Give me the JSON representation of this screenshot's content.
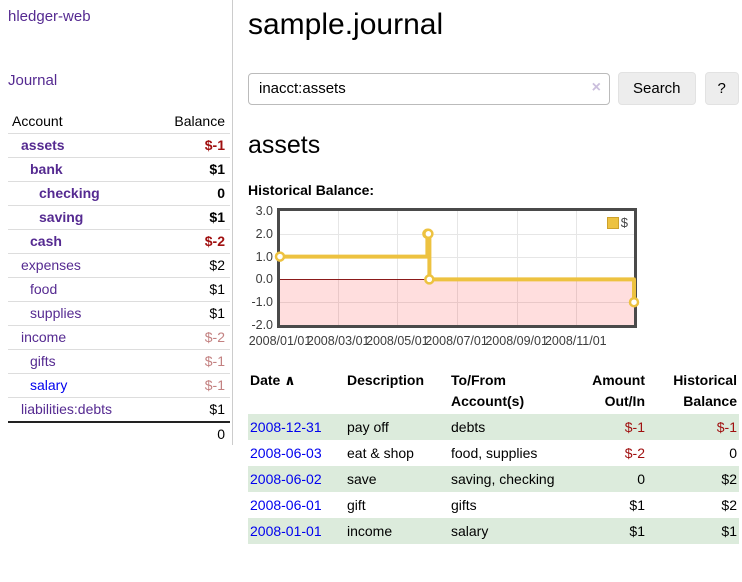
{
  "sidebar": {
    "app_title": "hledger-web",
    "journal_link": "Journal",
    "headers": {
      "account": "Account",
      "balance": "Balance"
    },
    "accounts": [
      {
        "name": "assets",
        "balance": "$-1"
      },
      {
        "name": "bank",
        "balance": "$1"
      },
      {
        "name": "checking",
        "balance": "0"
      },
      {
        "name": "saving",
        "balance": "$1"
      },
      {
        "name": "cash",
        "balance": "$-2"
      },
      {
        "name": "expenses",
        "balance": "$2"
      },
      {
        "name": "food",
        "balance": "$1"
      },
      {
        "name": "supplies",
        "balance": "$1"
      },
      {
        "name": "income",
        "balance": "$-2"
      },
      {
        "name": "gifts",
        "balance": "$-1"
      },
      {
        "name": "salary",
        "balance": "$-1"
      },
      {
        "name": "liabilities:debts",
        "balance": "$1"
      }
    ],
    "total": "0"
  },
  "header": {
    "title": "sample.journal"
  },
  "search": {
    "value": "inacct:assets",
    "clear_icon": "×",
    "button_label": "Search",
    "help_label": "?"
  },
  "account_page": {
    "heading": "assets",
    "chart_label": "Historical Balance:"
  },
  "chart_data": {
    "type": "line",
    "step": true,
    "title": "Historical Balance:",
    "xlabel": "",
    "ylabel": "",
    "grid": true,
    "legend_position": "top-right",
    "line_color": "#edc240",
    "xlim": [
      "2008/01/01",
      "2008/12/31"
    ],
    "ylim": [
      -2,
      3
    ],
    "y_ticks": [
      3,
      2,
      1,
      0,
      -1,
      -2
    ],
    "x_ticks": [
      "2008/01/01",
      "2008/03/01",
      "2008/05/01",
      "2008/07/01",
      "2008/09/01",
      "2008/11/01"
    ],
    "series": [
      {
        "name": "$",
        "color": "#edc240",
        "points": [
          [
            "2008-01-01",
            1
          ],
          [
            "2008-06-01",
            2
          ],
          [
            "2008-06-02",
            2
          ],
          [
            "2008-06-03",
            0
          ],
          [
            "2008-12-31",
            -1
          ]
        ]
      }
    ]
  },
  "register": {
    "headers": {
      "date": "Date",
      "sort_arrow": "∧",
      "description": "Description",
      "tofrom": "To/From Account(s)",
      "amount": "Amount Out/In",
      "balance": "Historical Balance"
    },
    "rows": [
      {
        "date": "2008-12-31",
        "description": "pay off",
        "accounts": "debts",
        "amount": "$-1",
        "balance": "$-1"
      },
      {
        "date": "2008-06-03",
        "description": "eat & shop",
        "accounts": "food, supplies",
        "amount": "$-2",
        "balance": "0"
      },
      {
        "date": "2008-06-02",
        "description": "save",
        "accounts": "saving, checking",
        "amount": "0",
        "balance": "$2"
      },
      {
        "date": "2008-06-01",
        "description": "gift",
        "accounts": "gifts",
        "amount": "$1",
        "balance": "$2"
      },
      {
        "date": "2008-01-01",
        "description": "income",
        "accounts": "salary",
        "amount": "$1",
        "balance": "$1"
      }
    ]
  }
}
